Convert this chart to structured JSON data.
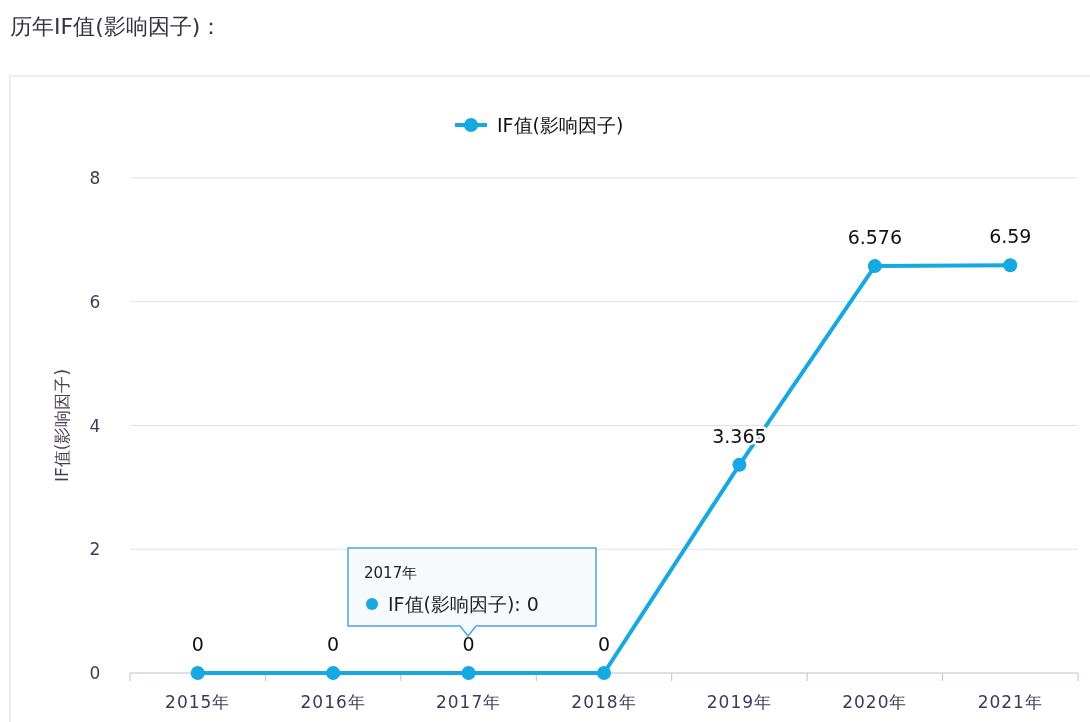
{
  "chart_data": {
    "type": "line",
    "title": "历年IF值(影响因子)：",
    "ylabel": "IF值(影响因子)",
    "categories": [
      "2015年",
      "2016年",
      "2017年",
      "2018年",
      "2019年",
      "2020年",
      "2021年"
    ],
    "series": [
      {
        "name": "IF值(影响因子)",
        "color": "#16a8e0",
        "values": [
          0,
          0,
          0,
          0,
          3.365,
          6.576,
          6.59
        ]
      }
    ],
    "ylim": [
      0,
      8
    ],
    "yticks": [
      0,
      2,
      4,
      6,
      8
    ],
    "grid": "y",
    "legend": "top",
    "marker": "circle",
    "line_style": "solid",
    "data_labels": true,
    "annotations": [
      "2017年\nIF值(影响因子): 0"
    ]
  }
}
